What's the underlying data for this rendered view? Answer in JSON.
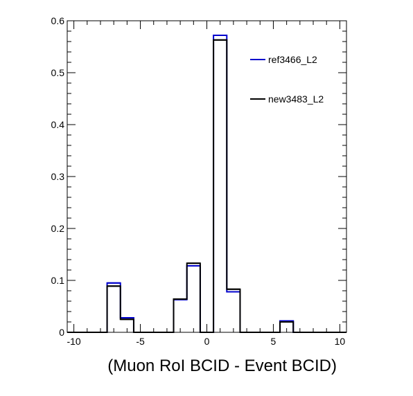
{
  "chart_data": {
    "type": "histogram",
    "title": "",
    "xlabel": "(Muon RoI BCID - Event BCID)",
    "ylabel": "",
    "xlim": [
      -10.5,
      10.5
    ],
    "ylim": [
      0,
      0.6
    ],
    "bin_width": 1,
    "x_ticks": [
      -10,
      -5,
      0,
      5,
      10
    ],
    "y_ticks": [
      0,
      0.1,
      0.2,
      0.3,
      0.4,
      0.5,
      0.6
    ],
    "x_tick_labels": [
      "-10",
      "-5",
      "0",
      "5",
      "10"
    ],
    "y_tick_labels": [
      "0",
      "0.1",
      "0.2",
      "0.3",
      "0.4",
      "0.5",
      "0.6"
    ],
    "bin_centers": [
      -7,
      -6,
      -2,
      -1,
      1,
      2,
      6
    ],
    "grid": false,
    "legend_position": "top-right",
    "series": [
      {
        "name": "ref3466_L2",
        "color": "#0000cc",
        "values": [
          0.095,
          0.028,
          0.063,
          0.128,
          0.572,
          0.078,
          0.022
        ]
      },
      {
        "name": "new3483_L2",
        "color": "#000000",
        "values": [
          0.089,
          0.025,
          0.064,
          0.133,
          0.563,
          0.083,
          0.02
        ]
      }
    ]
  }
}
